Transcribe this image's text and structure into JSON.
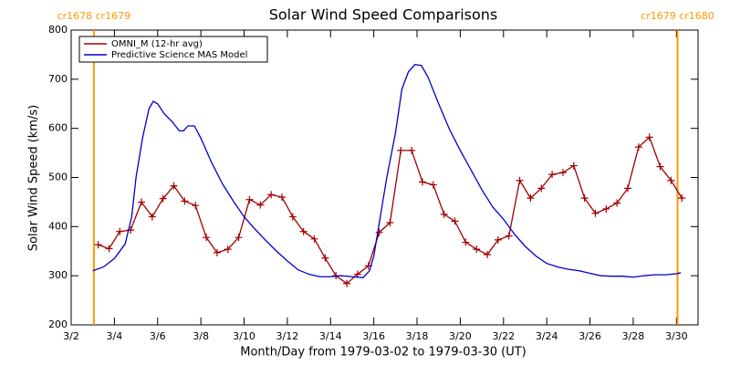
{
  "chart_data": {
    "type": "line",
    "title": "Solar Wind Speed Comparisons",
    "x_label": "Month/Day from 1979-03-02 to 1979-03-30 (UT)",
    "y_label": "Solar Wind Speed (km/s)",
    "xlim": [
      2,
      31
    ],
    "ylim": [
      200,
      800
    ],
    "xticks": [
      {
        "value": 2,
        "label": "3/2"
      },
      {
        "value": 4,
        "label": "3/4"
      },
      {
        "value": 6,
        "label": "3/6"
      },
      {
        "value": 8,
        "label": "3/8"
      },
      {
        "value": 10,
        "label": "3/10"
      },
      {
        "value": 12,
        "label": "3/12"
      },
      {
        "value": 14,
        "label": "3/14"
      },
      {
        "value": 16,
        "label": "3/16"
      },
      {
        "value": 18,
        "label": "3/18"
      },
      {
        "value": 20,
        "label": "3/20"
      },
      {
        "value": 22,
        "label": "3/22"
      },
      {
        "value": 24,
        "label": "3/24"
      },
      {
        "value": 26,
        "label": "3/26"
      },
      {
        "value": 28,
        "label": "3/28"
      },
      {
        "value": 30,
        "label": "3/30"
      }
    ],
    "yticks": [
      200,
      300,
      400,
      500,
      600,
      700,
      800
    ],
    "legend": "upper left",
    "vlines": [
      {
        "x": 3.05,
        "label": "cr1678 cr1679",
        "color": "#ff9900"
      },
      {
        "x": 30.05,
        "label": "cr1679 cr1680",
        "color": "#ff9900"
      }
    ],
    "series": [
      {
        "name": "OMNI_M (12-hr avg)",
        "color": "#a00000",
        "markers": true,
        "x": [
          3.25,
          3.75,
          4.25,
          4.75,
          5.25,
          5.75,
          6.25,
          6.75,
          7.25,
          7.75,
          8.25,
          8.75,
          9.25,
          9.75,
          10.25,
          10.75,
          11.25,
          11.75,
          12.25,
          12.75,
          13.25,
          13.75,
          14.25,
          14.75,
          15.25,
          15.75,
          16.25,
          16.75,
          17.25,
          17.75,
          18.25,
          18.75,
          19.25,
          19.75,
          20.25,
          20.75,
          21.25,
          21.75,
          22.25,
          22.75,
          23.25,
          23.75,
          24.25,
          24.75,
          25.25,
          25.75,
          26.25,
          26.75,
          27.25,
          27.75,
          28.25,
          28.75,
          29.25,
          29.75,
          30.25
        ],
        "values": [
          363,
          355,
          390,
          393,
          450,
          420,
          457,
          483,
          452,
          443,
          378,
          347,
          354,
          378,
          455,
          444,
          465,
          460,
          420,
          390,
          375,
          336,
          300,
          284,
          303,
          320,
          388,
          408,
          555,
          555,
          491,
          485,
          425,
          411,
          368,
          354,
          343,
          373,
          381,
          494,
          458,
          478,
          506,
          510,
          524,
          458,
          427,
          436,
          448,
          478,
          562,
          582,
          522,
          494,
          458
        ]
      },
      {
        "name": "Predictive Science MAS Model",
        "color": "#0000cc",
        "markers": false,
        "x": [
          3.0,
          3.5,
          4.0,
          4.5,
          4.8,
          5.0,
          5.3,
          5.6,
          5.8,
          6.0,
          6.3,
          6.7,
          7.0,
          7.2,
          7.4,
          7.7,
          8.0,
          8.5,
          9.0,
          9.5,
          10.0,
          10.5,
          11.0,
          11.5,
          12.0,
          12.5,
          13.0,
          13.5,
          14.0,
          14.5,
          15.0,
          15.5,
          15.8,
          16.0,
          16.3,
          16.6,
          17.0,
          17.3,
          17.6,
          17.9,
          18.2,
          18.5,
          19.0,
          19.5,
          20.0,
          20.5,
          21.0,
          21.5,
          22.0,
          22.5,
          23.0,
          23.5,
          24.0,
          24.5,
          25.0,
          25.5,
          26.0,
          26.5,
          27.0,
          27.5,
          28.0,
          28.5,
          29.0,
          29.5,
          30.0,
          30.2
        ],
        "values": [
          310,
          318,
          335,
          365,
          420,
          500,
          580,
          640,
          655,
          650,
          630,
          612,
          595,
          595,
          605,
          605,
          580,
          530,
          487,
          452,
          420,
          395,
          372,
          350,
          330,
          312,
          303,
          298,
          298,
          300,
          298,
          296,
          310,
          340,
          420,
          500,
          590,
          680,
          715,
          730,
          728,
          705,
          650,
          598,
          555,
          515,
          475,
          440,
          415,
          385,
          360,
          340,
          325,
          318,
          313,
          310,
          305,
          300,
          299,
          299,
          297,
          300,
          302,
          302,
          304,
          306
        ]
      }
    ]
  }
}
